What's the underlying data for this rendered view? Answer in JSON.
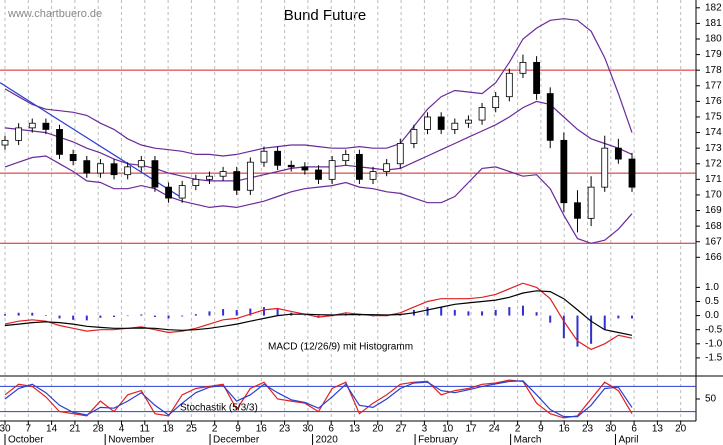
{
  "chart_data": [
    {
      "type": "candlestick",
      "title": "Bund Future",
      "source": "www.chartbuero.de",
      "open": [
        173.2,
        173.5,
        174.3,
        174.6,
        174.2,
        172.6,
        172.2,
        171.4,
        172.0,
        171.3,
        171.8,
        172.2,
        170.5,
        169.8,
        170.6,
        171.0,
        171.2,
        171.5,
        170.3,
        172.1,
        172.8,
        171.9,
        171.8,
        171.6,
        171.0,
        172.2,
        172.6,
        171.0,
        171.5,
        172.0,
        173.3,
        174.2,
        175.0,
        174.2,
        174.6,
        174.8,
        175.6,
        176.3,
        177.8,
        178.5,
        176.5,
        173.5,
        169.5,
        168.5,
        170.5,
        173.0,
        172.3
      ],
      "high": [
        173.8,
        174.6,
        174.9,
        174.9,
        174.5,
        172.9,
        172.5,
        172.3,
        172.3,
        172.1,
        172.5,
        172.5,
        170.8,
        170.9,
        171.3,
        171.5,
        171.8,
        171.8,
        172.4,
        173.1,
        173.1,
        172.2,
        172.1,
        171.9,
        172.5,
        172.9,
        172.9,
        171.8,
        172.3,
        173.6,
        174.5,
        175.3,
        175.3,
        174.9,
        175.1,
        175.9,
        176.6,
        178.1,
        179.0,
        178.9,
        176.9,
        174.0,
        170.3,
        171.2,
        173.8,
        173.6,
        172.7
      ],
      "low": [
        172.9,
        173.2,
        174.0,
        173.9,
        172.3,
        171.9,
        171.1,
        171.1,
        171.0,
        171.0,
        171.5,
        170.2,
        169.5,
        169.5,
        170.3,
        170.7,
        170.9,
        170.0,
        170.0,
        171.8,
        171.6,
        171.5,
        171.3,
        170.7,
        170.7,
        171.9,
        170.7,
        170.7,
        171.2,
        171.7,
        173.0,
        173.9,
        173.9,
        173.9,
        174.3,
        174.5,
        175.3,
        176.0,
        177.5,
        176.1,
        173.0,
        168.9,
        167.6,
        168.0,
        170.2,
        172.0,
        170.2
      ],
      "close": [
        173.5,
        174.3,
        174.6,
        174.2,
        172.6,
        172.2,
        171.4,
        172.0,
        171.3,
        171.8,
        172.2,
        170.5,
        169.8,
        170.6,
        171.0,
        171.2,
        171.5,
        170.3,
        172.1,
        172.8,
        171.9,
        171.8,
        171.6,
        171.0,
        172.2,
        172.6,
        171.0,
        171.5,
        172.0,
        173.3,
        174.2,
        175.0,
        174.2,
        174.6,
        174.8,
        175.6,
        176.3,
        177.8,
        178.5,
        176.5,
        173.5,
        169.5,
        168.5,
        170.5,
        173.0,
        172.3,
        170.5
      ],
      "bands": [
        {
          "color": "#6a2a9a",
          "values": [
            176.8,
            176.3,
            175.8,
            175.5,
            175.4,
            175.3,
            175.1,
            174.6,
            174.2,
            173.6,
            173.2,
            173.0,
            172.9,
            172.8,
            172.6,
            172.6,
            172.5,
            172.6,
            172.8,
            173.0,
            173.1,
            173.2,
            173.2,
            173.1,
            173.0,
            173.0,
            173.1,
            173.0,
            173.0,
            173.3,
            174.4,
            175.5,
            176.3,
            176.7,
            176.6,
            176.5,
            177.2,
            178.5,
            180.0,
            180.7,
            181.2,
            181.3,
            181.2,
            180.5,
            178.8,
            176.5,
            174.0
          ]
        },
        {
          "color": "#6a2a9a",
          "values": [
            174.3,
            174.2,
            174.1,
            174.0,
            173.7,
            173.4,
            173.0,
            172.7,
            172.3,
            172.0,
            171.9,
            171.7,
            171.4,
            171.2,
            171.0,
            170.9,
            170.9,
            170.9,
            171.1,
            171.3,
            171.5,
            171.7,
            171.8,
            171.8,
            171.8,
            171.9,
            171.8,
            171.7,
            171.6,
            171.7,
            172.1,
            172.5,
            172.9,
            173.3,
            173.7,
            174.1,
            174.5,
            175.0,
            175.6,
            176.0,
            175.8,
            175.0,
            174.2,
            173.6,
            173.3,
            173.0,
            172.6
          ]
        },
        {
          "color": "#6a2a9a",
          "values": [
            171.8,
            172.1,
            172.4,
            172.5,
            172.0,
            171.5,
            170.9,
            170.8,
            170.4,
            170.4,
            170.6,
            170.4,
            169.9,
            169.6,
            169.4,
            169.2,
            169.3,
            169.2,
            169.4,
            169.6,
            169.9,
            170.2,
            170.4,
            170.5,
            170.6,
            170.8,
            170.5,
            170.4,
            170.2,
            170.1,
            169.8,
            169.5,
            169.5,
            169.9,
            170.8,
            171.7,
            171.8,
            171.5,
            171.2,
            171.3,
            170.4,
            168.7,
            167.2,
            166.9,
            167.1,
            167.8,
            168.8
          ]
        }
      ],
      "hlines": {
        "color": "#d02020",
        "values": [
          178,
          171.4,
          166.9
        ]
      },
      "trendline": {
        "color": "#2a3fd0",
        "values": [
          177.2,
          169.8
        ]
      },
      "ylim": [
        165.7,
        182.5
      ],
      "yticks": [
        182,
        181,
        180,
        179,
        178,
        177,
        176,
        175,
        174,
        173,
        172,
        171,
        170,
        169,
        168,
        167,
        166
      ]
    },
    {
      "type": "macd",
      "label": "MACD (12/26/9) mit Histogramm",
      "series": [
        {
          "color": "#e02020",
          "values": [
            -0.3,
            -0.2,
            -0.15,
            -0.2,
            -0.35,
            -0.45,
            -0.55,
            -0.5,
            -0.5,
            -0.45,
            -0.4,
            -0.5,
            -0.6,
            -0.55,
            -0.45,
            -0.3,
            -0.15,
            -0.1,
            0.05,
            0.2,
            0.25,
            0.15,
            0.05,
            -0.05,
            0.0,
            0.1,
            0.05,
            0.0,
            0.0,
            0.1,
            0.3,
            0.5,
            0.6,
            0.6,
            0.6,
            0.65,
            0.75,
            0.95,
            1.15,
            1.0,
            0.6,
            -0.2,
            -0.9,
            -1.2,
            -1.0,
            -0.7,
            -0.8
          ]
        },
        {
          "color": "#000000",
          "values": [
            -0.35,
            -0.3,
            -0.25,
            -0.22,
            -0.25,
            -0.3,
            -0.38,
            -0.42,
            -0.45,
            -0.45,
            -0.44,
            -0.45,
            -0.5,
            -0.52,
            -0.5,
            -0.45,
            -0.38,
            -0.3,
            -0.2,
            -0.1,
            0.0,
            0.05,
            0.05,
            0.03,
            0.02,
            0.03,
            0.04,
            0.03,
            0.02,
            0.04,
            0.1,
            0.2,
            0.3,
            0.4,
            0.45,
            0.5,
            0.55,
            0.65,
            0.8,
            0.88,
            0.85,
            0.6,
            0.2,
            -0.2,
            -0.5,
            -0.6,
            -0.7
          ]
        }
      ],
      "histogram": {
        "color": "#3030d0",
        "values": [
          0.05,
          0.1,
          0.1,
          0.02,
          -0.1,
          -0.15,
          -0.17,
          -0.08,
          -0.05,
          0,
          0.04,
          -0.05,
          -0.1,
          -0.03,
          0.05,
          0.15,
          0.23,
          0.2,
          0.25,
          0.3,
          0.25,
          0.1,
          0,
          -0.08,
          -0.02,
          0.07,
          0.01,
          -0.03,
          -0.02,
          0.06,
          0.2,
          0.3,
          0.3,
          0.2,
          0.15,
          0.15,
          0.2,
          0.3,
          0.35,
          0.12,
          -0.25,
          -0.8,
          -1.1,
          -1.0,
          -0.5,
          -0.1,
          -0.1
        ]
      },
      "ylim": [
        -2.0,
        1.9
      ],
      "yticks": [
        {
          "value": 1,
          "label": "1.0"
        },
        0.5,
        {
          "value": 0,
          "label": "0.0"
        },
        -0.5,
        {
          "value": -1,
          "label": "-1.0"
        },
        -1.5
      ]
    },
    {
      "type": "line",
      "label": "Stochastik (5/3/3)",
      "series": [
        {
          "color": "#e02020",
          "values": [
            60,
            85,
            80,
            55,
            20,
            15,
            10,
            45,
            20,
            60,
            70,
            15,
            10,
            60,
            75,
            80,
            85,
            25,
            75,
            90,
            50,
            45,
            40,
            20,
            75,
            90,
            15,
            40,
            60,
            85,
            90,
            92,
            60,
            70,
            75,
            85,
            88,
            95,
            92,
            40,
            15,
            5,
            10,
            50,
            90,
            70,
            15
          ]
        },
        {
          "color": "#2a3fd0",
          "values": [
            50,
            75,
            85,
            65,
            35,
            18,
            12,
            30,
            28,
            45,
            65,
            35,
            12,
            40,
            65,
            78,
            82,
            45,
            60,
            85,
            65,
            48,
            42,
            28,
            55,
            85,
            35,
            30,
            50,
            75,
            88,
            90,
            70,
            65,
            72,
            80,
            86,
            92,
            93,
            60,
            25,
            8,
            8,
            35,
            75,
            78,
            30
          ]
        }
      ],
      "hlines": {
        "color": "#2a3fd0",
        "values": [
          80,
          20
        ]
      },
      "ylim": [
        0,
        100
      ],
      "yticks": [
        50
      ],
      "xticks": [
        "30",
        "7",
        "14",
        "21",
        "28",
        "4",
        "11",
        "18",
        "25",
        "2",
        "9",
        "16",
        "23",
        "30",
        "6",
        "13",
        "20",
        "27",
        "3",
        "10",
        "17",
        "24",
        "2",
        "9",
        "16",
        "23",
        "30",
        "6",
        "13",
        "20"
      ],
      "months": [
        "October",
        "November",
        "December",
        "2020",
        "February",
        "March",
        "April"
      ]
    }
  ]
}
